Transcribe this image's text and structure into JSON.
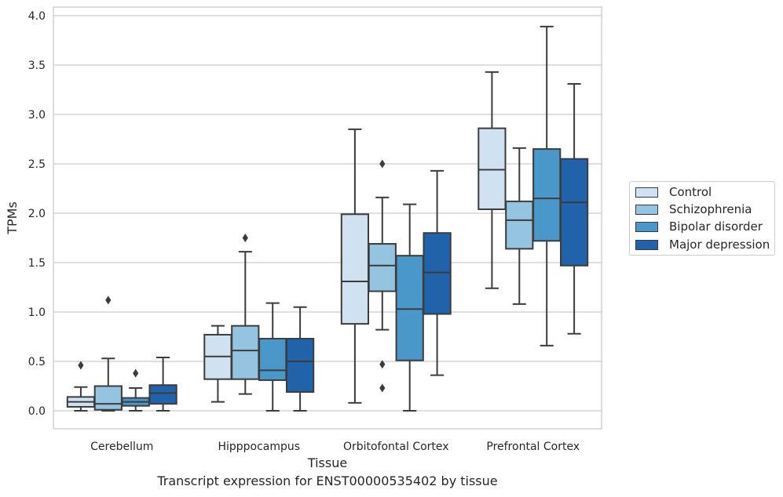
{
  "chart_data": {
    "type": "boxplot",
    "title": "",
    "xlabel": "Tissue",
    "ylabel": "TPMs",
    "ylim": [
      -0.19,
      4.1
    ],
    "yticks": [
      "0.0",
      "0.5",
      "1.0",
      "1.5",
      "2.0",
      "2.5",
      "3.0",
      "3.5",
      "4.0"
    ],
    "grid": "horizontal",
    "legend_placement": "right",
    "categories": [
      "Cerebellum",
      "Hipppocampus",
      "Orbitofontal Cortex",
      "Prefrontal Cortex"
    ],
    "series": [
      {
        "name": "Control",
        "color": "#d0e1f2",
        "boxes": [
          {
            "whislo": 0.0,
            "q1": 0.04,
            "med": 0.09,
            "q3": 0.14,
            "whishi": 0.24,
            "fliers": [
              0.46
            ]
          },
          {
            "whislo": 0.09,
            "q1": 0.32,
            "med": 0.55,
            "q3": 0.77,
            "whishi": 0.86,
            "fliers": []
          },
          {
            "whislo": 0.08,
            "q1": 0.88,
            "med": 1.31,
            "q3": 1.99,
            "whishi": 2.85,
            "fliers": []
          },
          {
            "whislo": 1.24,
            "q1": 2.04,
            "med": 2.44,
            "q3": 2.86,
            "whishi": 3.43,
            "fliers": []
          }
        ]
      },
      {
        "name": "Schizophrenia",
        "color": "#94c4df",
        "boxes": [
          {
            "whislo": 0.0,
            "q1": 0.01,
            "med": 0.07,
            "q3": 0.25,
            "whishi": 0.53,
            "fliers": [
              1.12
            ]
          },
          {
            "whislo": 0.17,
            "q1": 0.32,
            "med": 0.61,
            "q3": 0.86,
            "whishi": 1.61,
            "fliers": [
              1.75
            ]
          },
          {
            "whislo": 0.82,
            "q1": 1.21,
            "med": 1.47,
            "q3": 1.69,
            "whishi": 2.16,
            "fliers": [
              2.5,
              0.47,
              0.23
            ]
          },
          {
            "whislo": 1.08,
            "q1": 1.64,
            "med": 1.93,
            "q3": 2.12,
            "whishi": 2.66,
            "fliers": []
          }
        ]
      },
      {
        "name": "Bipolar disorder",
        "color": "#4a98c9",
        "boxes": [
          {
            "whislo": 0.0,
            "q1": 0.05,
            "med": 0.09,
            "q3": 0.13,
            "whishi": 0.23,
            "fliers": [
              0.38
            ]
          },
          {
            "whislo": 0.0,
            "q1": 0.31,
            "med": 0.41,
            "q3": 0.73,
            "whishi": 1.09,
            "fliers": []
          },
          {
            "whislo": 0.0,
            "q1": 0.51,
            "med": 1.03,
            "q3": 1.57,
            "whishi": 2.09,
            "fliers": []
          },
          {
            "whislo": 0.66,
            "q1": 1.72,
            "med": 2.15,
            "q3": 2.65,
            "whishi": 3.89,
            "fliers": []
          }
        ]
      },
      {
        "name": "Major depression",
        "color": "#2163aa",
        "boxes": [
          {
            "whislo": 0.0,
            "q1": 0.07,
            "med": 0.18,
            "q3": 0.26,
            "whishi": 0.54,
            "fliers": []
          },
          {
            "whislo": 0.0,
            "q1": 0.19,
            "med": 0.5,
            "q3": 0.73,
            "whishi": 1.05,
            "fliers": []
          },
          {
            "whislo": 0.36,
            "q1": 0.98,
            "med": 1.4,
            "q3": 1.8,
            "whishi": 2.43,
            "fliers": []
          },
          {
            "whislo": 0.78,
            "q1": 1.47,
            "med": 2.11,
            "q3": 2.55,
            "whishi": 3.31,
            "fliers": []
          }
        ]
      }
    ]
  },
  "caption": "Transcript expression for ENST00000535402 by tissue"
}
